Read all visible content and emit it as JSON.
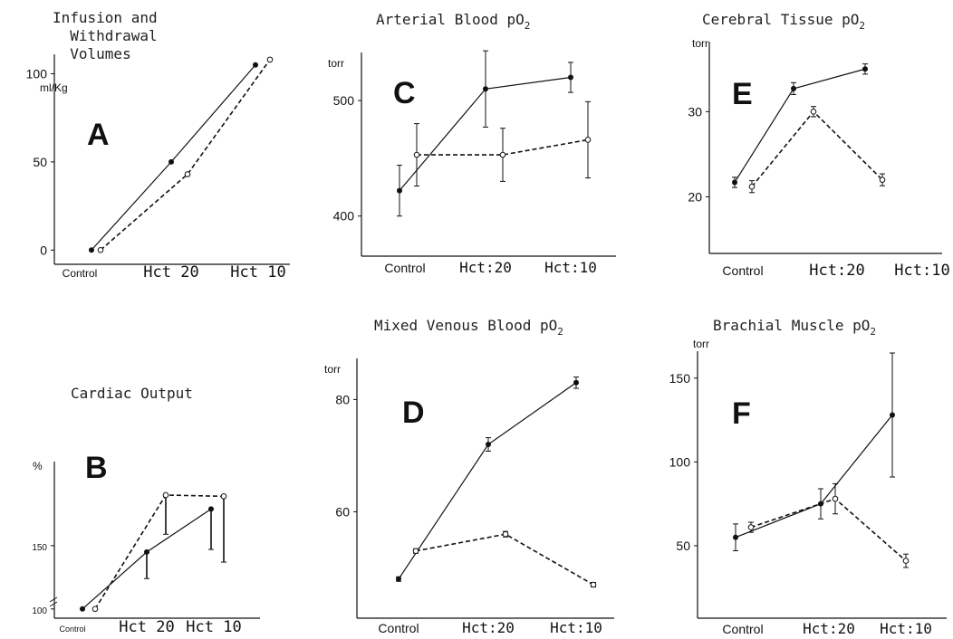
{
  "chart_data": [
    {
      "id": "A",
      "type": "line",
      "title_lines": [
        "Infusion and",
        "  Withdrawal",
        "  Volumes"
      ],
      "panel_letter": "A",
      "ylabel": "ml/Kg",
      "ylim": [
        -5,
        110
      ],
      "y_ticks": [
        0,
        50,
        100
      ],
      "categories": [
        "Control",
        "Hct 20",
        "Hct 10"
      ],
      "series": [
        {
          "style": "solid",
          "marker": "filled",
          "values": [
            0,
            50,
            105
          ]
        },
        {
          "style": "dashed",
          "marker": "open",
          "values": [
            0,
            43,
            108
          ]
        }
      ]
    },
    {
      "id": "B",
      "type": "line",
      "title": "Cardiac Output",
      "panel_letter": "B",
      "ylabel": "%",
      "ylim": [
        97,
        215
      ],
      "y_ticks": [
        100,
        150
      ],
      "categories": [
        "Control",
        "Hct 20",
        "Hct 10"
      ],
      "series": [
        {
          "style": "solid",
          "marker": "filled",
          "values": [
            100,
            145,
            179
          ],
          "err_low": [
            0,
            21,
            32
          ],
          "err_high": [
            0,
            0,
            0
          ]
        },
        {
          "style": "dashed",
          "marker": "open",
          "values": [
            100,
            190,
            189
          ],
          "err_low": [
            0,
            31,
            52
          ],
          "err_high": [
            0,
            0,
            0
          ]
        }
      ]
    },
    {
      "id": "C",
      "type": "line",
      "title": "Arterial Blood pO",
      "title_sub": "2",
      "panel_letter": "C",
      "ylabel": "torr",
      "ylim": [
        370,
        540
      ],
      "y_ticks": [
        400,
        500
      ],
      "categories": [
        "Control",
        "Hct:20",
        "Hct:10"
      ],
      "series": [
        {
          "style": "solid",
          "marker": "filled",
          "values": [
            422,
            510,
            520
          ],
          "err": [
            22,
            33,
            13
          ]
        },
        {
          "style": "dashed",
          "marker": "open",
          "values": [
            453,
            453,
            466
          ],
          "err": [
            27,
            23,
            33
          ]
        }
      ]
    },
    {
      "id": "D",
      "type": "line",
      "title": "Mixed Venous Blood pO",
      "title_sub": "2",
      "panel_letter": "D",
      "ylabel": "torr",
      "ylim": [
        42,
        87
      ],
      "y_ticks": [
        60,
        80
      ],
      "categories": [
        "Control",
        "Hct:20",
        "Hct:10"
      ],
      "series": [
        {
          "style": "solid",
          "marker": "filled",
          "values": [
            48,
            72,
            83
          ],
          "err": [
            0.4,
            1.2,
            1
          ]
        },
        {
          "style": "dashed",
          "marker": "open",
          "values": [
            53,
            56,
            47
          ],
          "err": [
            0.4,
            0.5,
            0.4
          ]
        }
      ]
    },
    {
      "id": "E",
      "type": "line",
      "title": "Cerebral Tissue pO",
      "title_sub": "2",
      "panel_letter": "E",
      "ylabel": "torr",
      "ylim": [
        14,
        38
      ],
      "y_ticks": [
        20,
        30
      ],
      "categories": [
        "Control",
        "Hct:20",
        "Hct:10"
      ],
      "series": [
        {
          "style": "solid",
          "marker": "filled",
          "values": [
            21.7,
            32.7,
            35
          ],
          "err": [
            0.6,
            0.7,
            0.6
          ]
        },
        {
          "style": "dashed",
          "marker": "open",
          "values": [
            21.2,
            30,
            22
          ],
          "err": [
            0.7,
            0.6,
            0.7
          ]
        }
      ]
    },
    {
      "id": "F",
      "type": "line",
      "title": "Brachial Muscle pO",
      "title_sub": "2",
      "panel_letter": "F",
      "ylabel": "torr",
      "ylim": [
        10,
        165
      ],
      "y_ticks": [
        50,
        100,
        150
      ],
      "categories": [
        "Control",
        "Hct:20",
        "Hct:10"
      ],
      "series": [
        {
          "style": "solid",
          "marker": "filled",
          "values": [
            55,
            75,
            128
          ],
          "err": [
            8,
            9,
            37
          ]
        },
        {
          "style": "dashed",
          "marker": "open",
          "values": [
            61,
            78,
            41
          ],
          "err": [
            3,
            9,
            4
          ]
        }
      ]
    }
  ]
}
